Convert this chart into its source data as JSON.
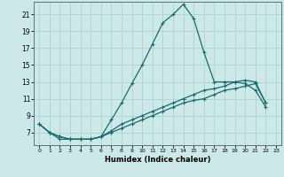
{
  "title": "",
  "xlabel": "Humidex (Indice chaleur)",
  "ylabel": "",
  "background_color": "#cde8e8",
  "grid_color": "#aacece",
  "line_color": "#1a6b6b",
  "xlim": [
    -0.5,
    23.5
  ],
  "ylim": [
    5.5,
    22.5
  ],
  "xtick_labels": [
    "0",
    "1",
    "2",
    "3",
    "4",
    "5",
    "6",
    "7",
    "8",
    "9",
    "10",
    "11",
    "12",
    "13",
    "14",
    "15",
    "16",
    "17",
    "18",
    "19",
    "20",
    "21",
    "22",
    "23"
  ],
  "xtick_vals": [
    0,
    1,
    2,
    3,
    4,
    5,
    6,
    7,
    8,
    9,
    10,
    11,
    12,
    13,
    14,
    15,
    16,
    17,
    18,
    19,
    20,
    21,
    22,
    23
  ],
  "ytick_vals": [
    7,
    9,
    11,
    13,
    15,
    17,
    19,
    21
  ],
  "main_x": [
    0,
    1,
    2,
    3,
    4,
    5,
    6,
    7,
    8,
    9,
    10,
    11,
    12,
    13,
    14,
    15,
    16,
    17,
    18,
    19,
    20,
    21,
    22
  ],
  "main_y": [
    8,
    7,
    6.2,
    6.2,
    6.2,
    6.2,
    6.5,
    8.5,
    10.5,
    12.8,
    15,
    17.5,
    20,
    21,
    22.2,
    20.5,
    16.5,
    13,
    13,
    13,
    12.8,
    12,
    10
  ],
  "line2_x": [
    0,
    1,
    2,
    3,
    4,
    5,
    6,
    7,
    8,
    9,
    10,
    11,
    12,
    13,
    14,
    15,
    16,
    17,
    18,
    19,
    20,
    21,
    22
  ],
  "line2_y": [
    8,
    7,
    6.5,
    6.2,
    6.2,
    6.2,
    6.5,
    7.2,
    8,
    8.5,
    9,
    9.5,
    10,
    10.5,
    11,
    11.5,
    12,
    12.2,
    12.5,
    13,
    13.2,
    13,
    10.5
  ],
  "line3_x": [
    0,
    1,
    2,
    3,
    4,
    5,
    6,
    7,
    8,
    9,
    10,
    11,
    12,
    13,
    14,
    15,
    16,
    17,
    18,
    19,
    20,
    21,
    22
  ],
  "line3_y": [
    8,
    7,
    6.5,
    6.2,
    6.2,
    6.2,
    6.5,
    7,
    7.5,
    8,
    8.5,
    9,
    9.5,
    10,
    10.5,
    10.8,
    11,
    11.5,
    12,
    12.2,
    12.5,
    12.8,
    10.5
  ]
}
